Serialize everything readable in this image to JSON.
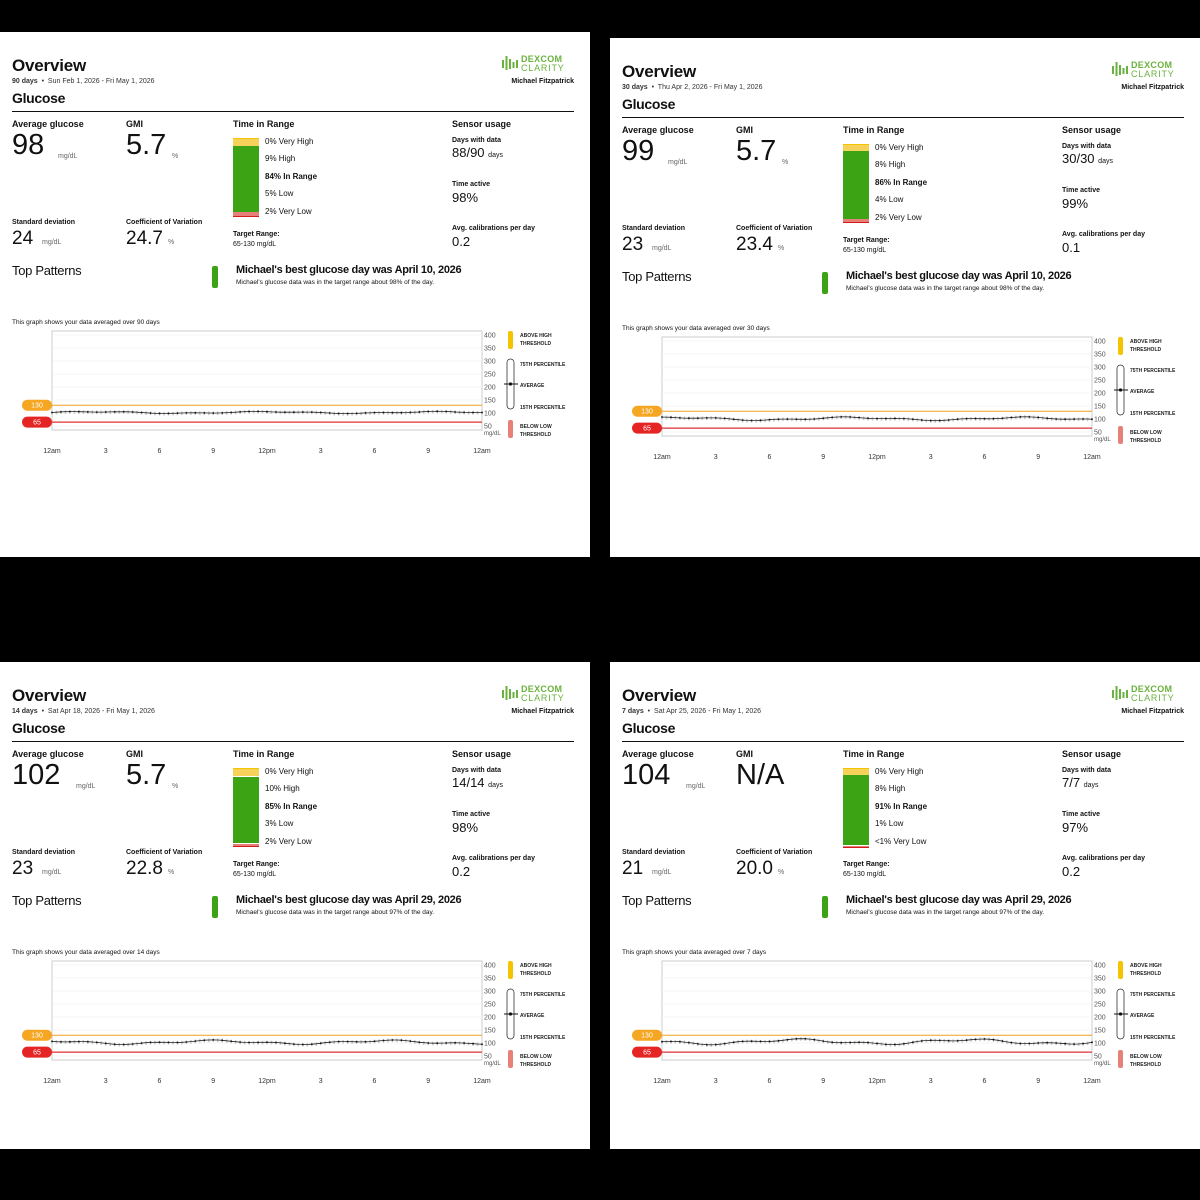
{
  "logo": {
    "line1": "DEXCOM",
    "line2": "CLARITY"
  },
  "labels": {
    "title": "Overview",
    "section": "Glucose",
    "avg_glucose": "Average glucose",
    "gmi": "GMI",
    "time_in_range": "Time in Range",
    "sensor_usage": "Sensor usage",
    "days_with_data": "Days with data",
    "time_active": "Time active",
    "avg_calibrations": "Avg. calibrations per day",
    "std_dev": "Standard deviation",
    "cv": "Coefficient of Variation",
    "target_range_label": "Target Range:",
    "target_range_value": "65-130 mg/dL",
    "top_patterns": "Top Patterns",
    "unit": "mg/dL",
    "percent": "%",
    "days": "days"
  },
  "colors": {
    "very_high": "#f5c400",
    "high": "#f7d25a",
    "in_range": "#3ca414",
    "low": "#e8807a",
    "very_low": "#d41c1c",
    "target_line_high": "#f0a020",
    "target_line_low": "#e03030"
  },
  "graph": {
    "y_ticks": [
      "400",
      "350",
      "300",
      "250",
      "200",
      "150",
      "100",
      "50"
    ],
    "y_unit": "mg/dL",
    "x_ticks": [
      "12am",
      "3",
      "6",
      "9",
      "12pm",
      "3",
      "6",
      "9",
      "12am"
    ],
    "high_threshold": "130",
    "low_threshold": "65",
    "legend": {
      "above_high_1": "ABOVE HIGH",
      "above_high_2": "THRESHOLD",
      "p75": "75TH PERCENTILE",
      "average": "AVERAGE",
      "p15": "15TH PERCENTILE",
      "below_low_1": "BELOW LOW",
      "below_low_2": "THRESHOLD"
    }
  },
  "panels": [
    {
      "days_label": "90 days",
      "date_range": "Sun Feb 1, 2026 - Fri May 1, 2026",
      "user": "Michael Fitzpatrick",
      "avg_glucose": "98",
      "gmi": "5.7",
      "gmi_unit": "%",
      "std_dev": "24",
      "cv": "24.7",
      "tir": {
        "very_high": "0% Very High",
        "high": "9% High",
        "in_range": "84% In Range",
        "low": "5% Low",
        "very_low": "2% Very Low"
      },
      "tir_values": [
        0,
        9,
        84,
        5,
        2
      ],
      "days_with_data": "88/90",
      "time_active": "98%",
      "avg_calibrations": "0.2",
      "pattern_head": "Michael's best glucose day was April 10, 2026",
      "pattern_sub": "Michael's glucose data was in the target range about 98% of the day.",
      "graph_note": "This graph shows your data averaged over 90 days",
      "trend_mean": 102,
      "trend_amp": 3
    },
    {
      "days_label": "30 days",
      "date_range": "Thu Apr 2, 2026 - Fri May 1, 2026",
      "user": "Michael Fitzpatrick",
      "avg_glucose": "99",
      "gmi": "5.7",
      "gmi_unit": "%",
      "std_dev": "23",
      "cv": "23.4",
      "tir": {
        "very_high": "0% Very High",
        "high": "8% High",
        "in_range": "86% In Range",
        "low": "4% Low",
        "very_low": "2% Very Low"
      },
      "tir_values": [
        0,
        8,
        86,
        4,
        2
      ],
      "days_with_data": "30/30",
      "time_active": "99%",
      "avg_calibrations": "0.1",
      "pattern_head": "Michael's best glucose day was April 10, 2026",
      "pattern_sub": "Michael's glucose data was in the target range about 98% of the day.",
      "graph_note": "This graph shows your data averaged over 30 days",
      "trend_mean": 101,
      "trend_amp": 5
    },
    {
      "days_label": "14 days",
      "date_range": "Sat Apr 18, 2026 - Fri May 1, 2026",
      "user": "Michael Fitzpatrick",
      "avg_glucose": "102",
      "gmi": "5.7",
      "gmi_unit": "%",
      "std_dev": "23",
      "cv": "22.8",
      "tir": {
        "very_high": "0% Very High",
        "high": "10% High",
        "in_range": "85% In Range",
        "low": "3% Low",
        "very_low": "2% Very Low"
      },
      "tir_values": [
        0,
        10,
        85,
        3,
        2
      ],
      "days_with_data": "14/14",
      "time_active": "98%",
      "avg_calibrations": "0.2",
      "pattern_head": "Michael's best glucose day was April 29, 2026",
      "pattern_sub": "Michael's glucose data was in the target range about 97% of the day.",
      "graph_note": "This graph shows your data averaged over 14 days",
      "trend_mean": 103,
      "trend_amp": 6
    },
    {
      "days_label": "7 days",
      "date_range": "Sat Apr 25, 2026 - Fri May 1, 2026",
      "user": "Michael Fitzpatrick",
      "avg_glucose": "104",
      "gmi": "N/A",
      "gmi_unit": "",
      "std_dev": "21",
      "cv": "20.0",
      "tir": {
        "very_high": "0% Very High",
        "high": "8% High",
        "in_range": "91% In Range",
        "low": "1% Low",
        "very_low": "<1% Very Low"
      },
      "tir_values": [
        0,
        8,
        91,
        1,
        0.5
      ],
      "days_with_data": "7/7",
      "time_active": "97%",
      "avg_calibrations": "0.2",
      "pattern_head": "Michael's best glucose day was April 29, 2026",
      "pattern_sub": "Michael's glucose data was in the target range about 97% of the day.",
      "graph_note": "This graph shows your data averaged over 7 days",
      "trend_mean": 105,
      "trend_amp": 8
    }
  ]
}
